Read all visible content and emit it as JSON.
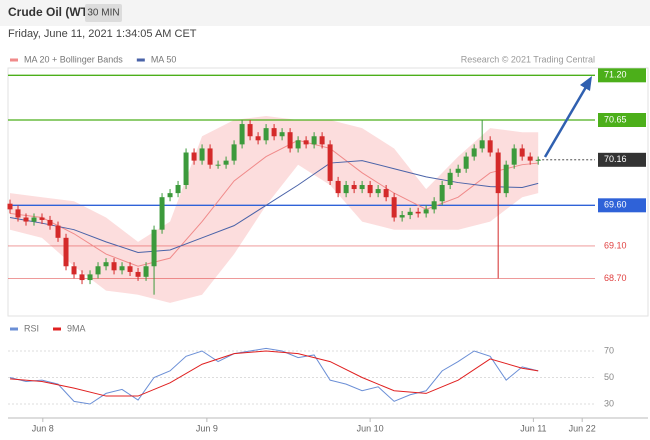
{
  "header": {
    "title": "Crude Oil (WTI)",
    "interval": "30 MIN",
    "date": "Friday, June 11, 2021 1:34:05 AM CET",
    "credit": "Research © 2021 Trading Central"
  },
  "chart_data": [
    {
      "type": "candlestick",
      "up_color": "#3c9a3c",
      "down_color": "#d42a2a",
      "open": [
        69.62,
        69.55,
        69.45,
        69.4,
        69.45,
        69.42,
        69.35,
        69.2,
        68.85,
        68.75,
        68.68,
        68.75,
        68.85,
        68.9,
        68.8,
        68.85,
        68.78,
        68.72,
        68.85,
        69.3,
        69.7,
        69.75,
        69.85,
        70.25,
        70.15,
        70.3,
        70.1,
        70.1,
        70.15,
        70.35,
        70.6,
        70.45,
        70.4,
        70.55,
        70.45,
        70.5,
        70.3,
        70.4,
        70.35,
        70.45,
        70.35,
        69.9,
        69.75,
        69.85,
        69.8,
        69.85,
        69.75,
        69.8,
        69.7,
        69.45,
        69.48,
        69.52,
        69.5,
        69.55,
        69.65,
        69.85,
        70.0,
        70.05,
        70.2,
        70.3,
        70.4,
        70.25,
        69.75,
        70.1,
        70.3,
        70.2,
        70.15
      ],
      "high": [
        69.67,
        69.6,
        69.5,
        69.5,
        69.5,
        69.47,
        69.4,
        69.25,
        68.9,
        68.8,
        68.8,
        68.9,
        68.95,
        68.95,
        68.9,
        68.9,
        68.83,
        68.9,
        69.35,
        69.75,
        69.8,
        69.9,
        70.3,
        70.3,
        70.35,
        70.35,
        70.15,
        70.2,
        70.4,
        70.65,
        70.65,
        70.5,
        70.6,
        70.6,
        70.55,
        70.55,
        70.45,
        70.45,
        70.5,
        70.5,
        70.4,
        69.95,
        69.9,
        69.9,
        69.9,
        69.9,
        69.85,
        69.85,
        69.75,
        69.53,
        69.57,
        69.57,
        69.6,
        69.7,
        69.9,
        70.05,
        70.1,
        70.25,
        70.35,
        70.65,
        70.45,
        70.3,
        70.15,
        70.35,
        70.35,
        70.25,
        70.2
      ],
      "low": [
        69.5,
        69.4,
        69.35,
        69.35,
        69.37,
        69.3,
        69.15,
        68.8,
        68.7,
        68.63,
        68.63,
        68.7,
        68.8,
        68.75,
        68.75,
        68.73,
        68.67,
        68.67,
        68.5,
        69.25,
        69.65,
        69.7,
        69.8,
        70.1,
        70.1,
        70.05,
        70.05,
        70.05,
        70.1,
        70.3,
        70.4,
        70.35,
        70.35,
        70.4,
        70.4,
        70.25,
        70.25,
        70.3,
        70.3,
        70.3,
        69.85,
        69.7,
        69.7,
        69.75,
        69.75,
        69.7,
        69.7,
        69.65,
        69.4,
        69.4,
        69.43,
        69.45,
        69.45,
        69.5,
        69.6,
        69.8,
        69.95,
        70.0,
        70.15,
        70.25,
        70.2,
        68.7,
        69.7,
        70.05,
        70.15,
        70.1,
        70.1
      ],
      "close": [
        69.55,
        69.45,
        69.4,
        69.45,
        69.42,
        69.35,
        69.2,
        68.85,
        68.75,
        68.68,
        68.75,
        68.85,
        68.9,
        68.8,
        68.85,
        68.78,
        68.72,
        68.85,
        69.3,
        69.7,
        69.75,
        69.85,
        70.25,
        70.15,
        70.3,
        70.1,
        70.1,
        70.15,
        70.35,
        70.6,
        70.45,
        70.4,
        70.55,
        70.45,
        70.5,
        70.3,
        70.4,
        70.35,
        70.45,
        70.35,
        69.9,
        69.75,
        69.85,
        69.8,
        69.85,
        69.75,
        69.8,
        69.7,
        69.45,
        69.48,
        69.52,
        69.5,
        69.55,
        69.65,
        69.85,
        70.0,
        70.05,
        70.2,
        70.3,
        70.4,
        70.25,
        69.75,
        70.1,
        70.3,
        70.2,
        70.15,
        70.16
      ],
      "xlim": [
        -0.25,
        73.1
      ],
      "ylim": [
        68.25,
        71.29
      ],
      "lines": [
        {
          "name": "MA 20 + Bollinger Bands",
          "color": "#f08a8a",
          "band_color": "#fbd5d5",
          "x": [
            0,
            4,
            8,
            12,
            16,
            20,
            24,
            28,
            32,
            36,
            40,
            44,
            48,
            52,
            56,
            60,
            64,
            66
          ],
          "values": [
            69.5,
            69.45,
            69.25,
            69.0,
            68.85,
            68.95,
            69.4,
            69.9,
            70.2,
            70.4,
            70.3,
            70.0,
            69.75,
            69.55,
            69.7,
            70.0,
            70.1,
            70.12
          ],
          "upper": [
            69.75,
            69.7,
            69.65,
            69.45,
            69.15,
            69.4,
            70.45,
            70.65,
            70.7,
            70.65,
            70.65,
            70.55,
            70.3,
            69.8,
            70.2,
            70.55,
            70.5,
            70.5
          ],
          "lower": [
            69.3,
            69.2,
            68.85,
            68.55,
            68.5,
            68.4,
            68.5,
            69.0,
            69.6,
            70.1,
            69.85,
            69.4,
            69.3,
            69.3,
            69.3,
            69.4,
            69.7,
            69.75
          ]
        },
        {
          "name": "MA 50",
          "color": "#4a63a8",
          "x": [
            0,
            4,
            8,
            12,
            16,
            20,
            24,
            28,
            32,
            36,
            40,
            44,
            48,
            52,
            56,
            60,
            64,
            66
          ],
          "values": [
            69.45,
            69.38,
            69.3,
            69.15,
            69.02,
            69.05,
            69.2,
            69.35,
            69.6,
            69.85,
            70.12,
            70.15,
            70.05,
            69.95,
            69.88,
            69.83,
            69.82,
            69.87
          ]
        }
      ],
      "levels": [
        {
          "value": 71.2,
          "label": "71.20",
          "color": "#4caf1a",
          "boxed": true,
          "dashed": false
        },
        {
          "value": 70.65,
          "label": "70.65",
          "color": "#4caf1a",
          "boxed": true,
          "dashed": false
        },
        {
          "value": 70.16,
          "label": "70.16",
          "color": "#333333",
          "boxed": true,
          "dashed": true
        },
        {
          "value": 69.6,
          "label": "69.60",
          "color": "#2f62d8",
          "boxed": true,
          "dashed": false
        },
        {
          "value": 69.1,
          "label": "69.10",
          "color": "#e04040",
          "boxed": false,
          "dashed": false
        },
        {
          "value": 68.7,
          "label": "68.70",
          "color": "#e04040",
          "boxed": false,
          "dashed": false
        }
      ]
    },
    {
      "type": "line",
      "series": [
        {
          "name": "RSI",
          "color": "#6b8fd6",
          "x": [
            0,
            2,
            4,
            6,
            8,
            10,
            12,
            14,
            16,
            18,
            20,
            22,
            24,
            26,
            28,
            30,
            32,
            34,
            36,
            38,
            40,
            42,
            44,
            46,
            48,
            50,
            52,
            54,
            56,
            58,
            60,
            62,
            64,
            66
          ],
          "values": [
            50,
            47,
            48,
            45,
            32,
            30,
            38,
            41,
            33,
            50,
            55,
            66,
            70,
            62,
            68,
            70,
            72,
            70,
            65,
            67,
            48,
            45,
            40,
            43,
            32,
            37,
            40,
            55,
            62,
            70,
            66,
            48,
            58,
            55
          ]
        },
        {
          "name": "9MA",
          "color": "#e02020",
          "x": [
            0,
            4,
            8,
            12,
            16,
            20,
            24,
            28,
            32,
            36,
            40,
            44,
            48,
            52,
            56,
            60,
            64,
            66
          ],
          "values": [
            49,
            47,
            42,
            36,
            36,
            46,
            60,
            68,
            70,
            68,
            62,
            50,
            40,
            38,
            48,
            64,
            57,
            55
          ]
        }
      ],
      "xlim": [
        -0.25,
        73.1
      ],
      "ylim": [
        21.7,
        78.3
      ],
      "yticks": [
        70,
        50,
        30
      ],
      "grid": true,
      "xticks": [
        {
          "value": 4.1,
          "label": "Jun 8"
        },
        {
          "value": 24.6,
          "label": "Jun 9"
        },
        {
          "value": 45,
          "label": "Jun 10"
        },
        {
          "value": 65.4,
          "label": "Jun 11"
        },
        {
          "value": 71.5,
          "label": "Jun 22"
        }
      ]
    }
  ]
}
